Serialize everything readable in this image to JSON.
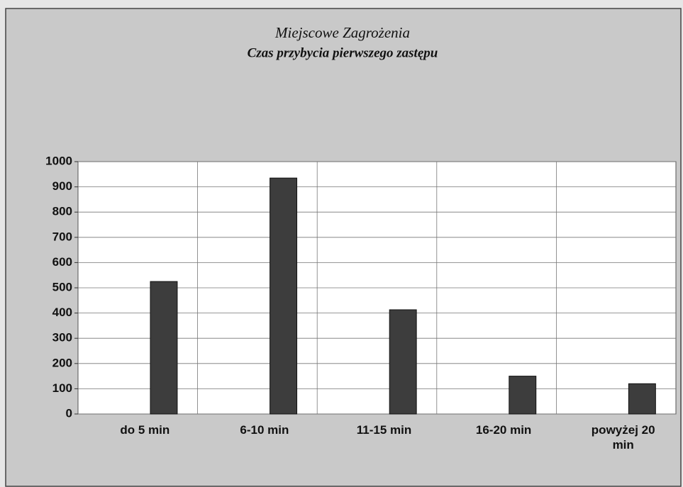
{
  "chart_data": {
    "type": "bar",
    "title": "Miejscowe Zagrożenia",
    "subtitle": "Czas przybycia pierwszego zastępu",
    "categories": [
      "do 5 min",
      "6-10 min",
      "11-15 min",
      "16-20 min",
      "powyżej 20 min"
    ],
    "values": [
      525,
      935,
      413,
      150,
      120
    ],
    "color": "#3d3d3d",
    "ylim": [
      0,
      1000
    ],
    "yticks": [
      0,
      100,
      200,
      300,
      400,
      500,
      600,
      700,
      800,
      900,
      1000
    ],
    "grid": true
  }
}
